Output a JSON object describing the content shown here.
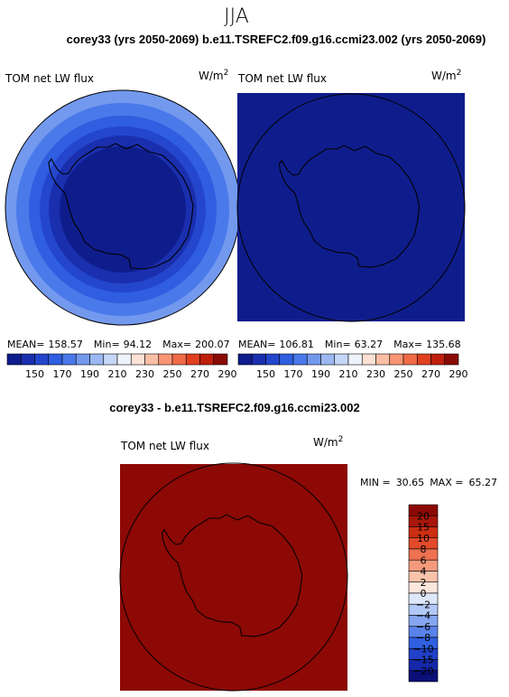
{
  "season": "JJA",
  "top_title": "corey33 (yrs 2050-2069)   b.e11.TSREFC2.f09.g16.ccmi23.002 (yrs 2050-2069)",
  "diff_title": "corey33 - b.e11.TSREFC2.f09.g16.ccmi23.002",
  "colors": {
    "abs_levels": [
      "#0f1d8c",
      "#1a2fae",
      "#2446cc",
      "#2f5ee0",
      "#4a79ea",
      "#7399ee",
      "#9cb8f2",
      "#c5d6f6",
      "#eef3fb",
      "#fde1d4",
      "#fbbfa6",
      "#f89575",
      "#f06a47",
      "#e0401f",
      "#bf1e0d",
      "#8a0a05"
    ],
    "diff_levels": [
      "#0a0f78",
      "#1428a8",
      "#2041c8",
      "#3060e0",
      "#5a82ea",
      "#85a5f0",
      "#b2c8f6",
      "#dde7fa",
      "#fde6dc",
      "#f8c2ab",
      "#f49a7b",
      "#ee7150",
      "#e24a2a",
      "#cc2e12",
      "#a8170a",
      "#8c0905"
    ]
  },
  "chart_data": [
    {
      "type": "heatmap",
      "title": "TOM net LW flux",
      "units": "W/m",
      "units_sup": "2",
      "projection": "south-polar-stereographic",
      "stats": {
        "mean_label": "MEAN=",
        "mean": "158.57",
        "min_label": "Min=",
        "min": "94.12",
        "max_label": "Max=",
        "max": "200.07"
      },
      "colorbar_ticks": [
        "150",
        "170",
        "190",
        "210",
        "230",
        "250",
        "270",
        "290"
      ],
      "contour_levels": [
        140,
        150,
        160,
        170,
        180,
        190,
        200,
        210,
        220,
        230,
        240,
        250,
        260,
        270,
        280,
        290
      ],
      "field_bands": [
        {
          "value_min": 195,
          "color_level": 5
        },
        {
          "value_min": 185,
          "color_level": 4
        },
        {
          "value_min": 175,
          "color_level": 3
        },
        {
          "value_min": 165,
          "color_level": 2
        },
        {
          "value_min": 155,
          "color_level": 1
        },
        {
          "value_min": 94,
          "color_level": 0
        }
      ]
    },
    {
      "type": "heatmap",
      "title": "TOM net LW flux",
      "units": "W/m",
      "units_sup": "2",
      "projection": "south-polar-stereographic",
      "stats": {
        "mean_label": "MEAN=",
        "mean": "106.81",
        "min_label": "Min=",
        "min": "63.27",
        "max_label": "Max=",
        "max": "135.68"
      },
      "colorbar_ticks": [
        "150",
        "170",
        "190",
        "210",
        "230",
        "250",
        "270",
        "290"
      ],
      "field_fill_level": 0
    },
    {
      "type": "heatmap",
      "title": "TOM net LW flux",
      "units": "W/m",
      "units_sup": "2",
      "projection": "south-polar-stereographic",
      "stats": {
        "min_label": "MIN =",
        "min": "30.65",
        "max_label": "MAX =",
        "max": "65.27"
      },
      "colorbar_ticks": [
        "20",
        "15",
        "10",
        "8",
        "6",
        "4",
        "2",
        "0",
        "−2",
        "−4",
        "−6",
        "−8",
        "−10",
        "−15",
        "−20"
      ],
      "field_fill_level": 15
    }
  ]
}
